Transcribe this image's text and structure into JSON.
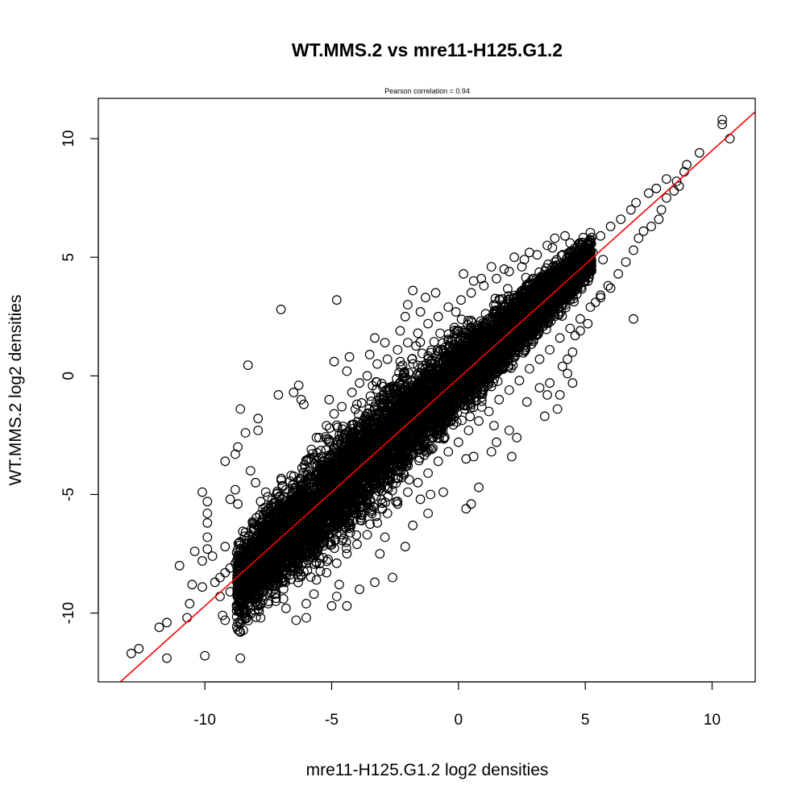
{
  "chart_data": {
    "type": "scatter",
    "title": "WT.MMS.2 vs mre11-H125.G1.2",
    "subtitle": "Pearson correlation =  0.94",
    "xlabel": "mre11-H125.G1.2 log2 densities",
    "ylabel": "WT.MMS.2 log2 densities",
    "xlim": [
      -14.2,
      11.7
    ],
    "ylim": [
      -12.9,
      11.7
    ],
    "xticks": [
      -10,
      -5,
      0,
      5,
      10
    ],
    "yticks": [
      -10,
      -5,
      0,
      5,
      10
    ],
    "xtick_labels": [
      "-10",
      "-5",
      "0",
      "5",
      "10"
    ],
    "ytick_labels": [
      "-10",
      "-5",
      "0",
      "5",
      "10"
    ],
    "grid": false,
    "marker": "open-circle",
    "colors": {
      "points": "#000000",
      "fit_line": "#ff0000"
    },
    "fit_line": {
      "slope": 0.96,
      "intercept": -0.1
    },
    "dense_band": [
      [
        -8.5,
        -8.6,
        1.0
      ],
      [
        -8.0,
        -8.0,
        1.0
      ],
      [
        -7.5,
        -7.5,
        1.1
      ],
      [
        -7.0,
        -7.0,
        1.2
      ],
      [
        -6.5,
        -6.5,
        1.2
      ],
      [
        -6.0,
        -6.0,
        1.2
      ],
      [
        -5.5,
        -5.5,
        1.25
      ],
      [
        -5.0,
        -5.0,
        1.3
      ],
      [
        -4.5,
        -4.5,
        1.3
      ],
      [
        -4.0,
        -4.0,
        1.3
      ],
      [
        -3.5,
        -3.4,
        1.3
      ],
      [
        -3.0,
        -2.9,
        1.3
      ],
      [
        -2.5,
        -2.4,
        1.25
      ],
      [
        -2.0,
        -1.9,
        1.2
      ],
      [
        -1.5,
        -1.4,
        1.15
      ],
      [
        -1.0,
        -0.9,
        1.1
      ],
      [
        -0.5,
        -0.4,
        1.05
      ],
      [
        0.0,
        0.0,
        1.0
      ],
      [
        0.5,
        0.5,
        0.95
      ],
      [
        1.0,
        0.9,
        0.9
      ],
      [
        1.5,
        1.4,
        0.85
      ],
      [
        2.0,
        1.9,
        0.8
      ],
      [
        2.5,
        2.4,
        0.75
      ],
      [
        3.0,
        2.9,
        0.7
      ],
      [
        3.5,
        3.3,
        0.65
      ],
      [
        4.0,
        3.8,
        0.6
      ],
      [
        4.5,
        4.3,
        0.55
      ],
      [
        5.0,
        4.8,
        0.5
      ]
    ],
    "points": [
      [
        -12.9,
        -11.7
      ],
      [
        -12.6,
        -11.5
      ],
      [
        -11.5,
        -11.9
      ],
      [
        -10.0,
        -11.8
      ],
      [
        -8.6,
        -11.9
      ],
      [
        -11.8,
        -10.6
      ],
      [
        -11.5,
        -10.4
      ],
      [
        -10.7,
        -10.2
      ],
      [
        -9.3,
        -10.1
      ],
      [
        -9.2,
        -10.3
      ],
      [
        -8.7,
        -10.4
      ],
      [
        -8.6,
        -10.8
      ],
      [
        -6.4,
        -10.3
      ],
      [
        -6.0,
        -10.2
      ],
      [
        -7.8,
        -10.2
      ],
      [
        -11.0,
        -8.0
      ],
      [
        -10.5,
        -8.8
      ],
      [
        -10.1,
        -8.9
      ],
      [
        -10.6,
        -9.6
      ],
      [
        -10.1,
        -4.9
      ],
      [
        -9.9,
        -5.3
      ],
      [
        -9.9,
        -5.8
      ],
      [
        -9.9,
        -6.2
      ],
      [
        -9.9,
        -6.8
      ],
      [
        -9.9,
        -7.3
      ],
      [
        -10.4,
        -7.4
      ],
      [
        -10.1,
        -7.8
      ],
      [
        -9.7,
        -7.6
      ],
      [
        -9.2,
        -7.2
      ],
      [
        -8.8,
        -4.8
      ],
      [
        -9.0,
        -5.2
      ],
      [
        -8.7,
        -5.4
      ],
      [
        -9.2,
        -3.6
      ],
      [
        -8.8,
        -3.3
      ],
      [
        -8.4,
        -2.4
      ],
      [
        -8.6,
        -1.4
      ],
      [
        -7.9,
        -2.3
      ],
      [
        -8.7,
        -3.0
      ],
      [
        -8.2,
        -4.0
      ],
      [
        -8.0,
        -4.5
      ],
      [
        -7.8,
        -5.3
      ],
      [
        -7.6,
        -4.9
      ],
      [
        -8.3,
        0.45
      ],
      [
        -7.9,
        -1.8
      ],
      [
        -7.1,
        -0.8
      ],
      [
        -7.0,
        2.8
      ],
      [
        -6.5,
        -0.7
      ],
      [
        -6.3,
        -0.4
      ],
      [
        -6.2,
        -1.0
      ],
      [
        -6.1,
        -1.2
      ],
      [
        -5.6,
        -2.6
      ],
      [
        -5.1,
        -2.8
      ],
      [
        -4.8,
        3.2
      ],
      [
        -4.9,
        0.6
      ],
      [
        -5.1,
        -1.0
      ],
      [
        -4.4,
        0.2
      ],
      [
        -4.3,
        0.8
      ],
      [
        -3.5,
        0.9
      ],
      [
        -3.3,
        1.6
      ],
      [
        -2.9,
        1.4
      ],
      [
        -2.6,
        -1.0
      ],
      [
        -2.1,
        2.5
      ],
      [
        -2.3,
        1.9
      ],
      [
        -2.0,
        3.0
      ],
      [
        -1.8,
        3.6
      ],
      [
        -1.3,
        3.3
      ],
      [
        -1.5,
        2.7
      ],
      [
        -0.9,
        3.5
      ],
      [
        -0.1,
        2.7
      ],
      [
        0.2,
        4.3
      ],
      [
        1.3,
        4.6
      ],
      [
        0.6,
        4.0
      ],
      [
        0.9,
        4.1
      ],
      [
        -6.8,
        -7.5
      ],
      [
        -6.5,
        -8.2
      ],
      [
        -6.0,
        -9.6
      ],
      [
        -6.9,
        -9.4
      ],
      [
        -5.7,
        -9.2
      ],
      [
        -5.0,
        -9.7
      ],
      [
        -4.8,
        -9.3
      ],
      [
        -4.4,
        -9.7
      ],
      [
        -4.7,
        -8.8
      ],
      [
        -3.9,
        -9.0
      ],
      [
        -3.3,
        -8.7
      ],
      [
        -2.6,
        -8.5
      ],
      [
        -3.1,
        -7.5
      ],
      [
        -2.9,
        -6.8
      ],
      [
        -2.1,
        -7.2
      ],
      [
        -1.8,
        -6.3
      ],
      [
        -1.2,
        -5.8
      ],
      [
        -1.5,
        -5.2
      ],
      [
        -1.1,
        -5.0
      ],
      [
        -0.6,
        -4.9
      ],
      [
        0.3,
        -5.6
      ],
      [
        0.5,
        -5.4
      ],
      [
        0.8,
        -4.7
      ],
      [
        0.3,
        -3.5
      ],
      [
        0.6,
        -3.4
      ],
      [
        1.3,
        -3.2
      ],
      [
        1.5,
        -2.8
      ],
      [
        1.4,
        -2.1
      ],
      [
        2.0,
        -2.3
      ],
      [
        2.3,
        -2.6
      ],
      [
        2.1,
        -3.4
      ],
      [
        2.7,
        -1.1
      ],
      [
        3.2,
        -0.5
      ],
      [
        3.4,
        -1.7
      ],
      [
        3.5,
        -0.8
      ],
      [
        3.6,
        -0.3
      ],
      [
        3.9,
        -1.4
      ],
      [
        4.0,
        -0.8
      ],
      [
        4.3,
        0.1
      ],
      [
        4.5,
        -0.3
      ],
      [
        4.1,
        0.4
      ],
      [
        4.3,
        0.7
      ],
      [
        4.5,
        1.0
      ],
      [
        4.6,
        1.7
      ],
      [
        4.8,
        1.9
      ],
      [
        5.1,
        2.2
      ],
      [
        5.4,
        3.1
      ],
      [
        5.6,
        3.4
      ],
      [
        5.9,
        3.8
      ],
      [
        6.3,
        4.3
      ],
      [
        6.6,
        4.8
      ],
      [
        6.9,
        5.3
      ],
      [
        7.1,
        5.8
      ],
      [
        7.3,
        6.1
      ],
      [
        7.6,
        6.3
      ],
      [
        7.9,
        6.6
      ],
      [
        8.0,
        7.0
      ],
      [
        8.2,
        7.5
      ],
      [
        8.5,
        7.8
      ],
      [
        8.7,
        8.0
      ],
      [
        8.2,
        8.3
      ],
      [
        7.8,
        7.9
      ],
      [
        7.5,
        7.7
      ],
      [
        7.0,
        7.3
      ],
      [
        6.8,
        7.0
      ],
      [
        6.4,
        6.6
      ],
      [
        6.0,
        6.3
      ],
      [
        5.6,
        5.9
      ],
      [
        5.2,
        5.6
      ],
      [
        4.8,
        5.3
      ],
      [
        4.4,
        5.6
      ],
      [
        3.8,
        5.8
      ],
      [
        3.5,
        5.5
      ],
      [
        2.8,
        5.2
      ],
      [
        2.2,
        5.0
      ],
      [
        2.5,
        4.6
      ],
      [
        1.8,
        4.5
      ],
      [
        6.9,
        2.4
      ],
      [
        5.3,
        5.2
      ],
      [
        5.7,
        4.9
      ],
      [
        9.0,
        8.9
      ],
      [
        9.5,
        9.4
      ],
      [
        10.4,
        10.8
      ],
      [
        10.4,
        10.6
      ],
      [
        10.7,
        10.0
      ],
      [
        8.9,
        8.6
      ],
      [
        8.6,
        8.2
      ],
      [
        -9.6,
        -8.7
      ],
      [
        -9.4,
        -8.5
      ],
      [
        -9.2,
        -8.3
      ],
      [
        -9.0,
        -8.1
      ],
      [
        -8.8,
        -7.9
      ],
      [
        -8.6,
        -7.7
      ],
      [
        -8.4,
        -7.5
      ],
      [
        -8.2,
        -7.3
      ],
      [
        -8.0,
        -7.1
      ],
      [
        -7.8,
        -6.9
      ],
      [
        -9.4,
        -9.3
      ],
      [
        -9.0,
        -9.1
      ],
      [
        -8.6,
        -8.9
      ],
      [
        -8.3,
        -9.2
      ],
      [
        -7.9,
        -9.4
      ],
      [
        -7.5,
        -9.6
      ],
      [
        -7.2,
        -9.5
      ],
      [
        -6.8,
        -9.8
      ],
      [
        -7.3,
        -6.0
      ],
      [
        -7.6,
        -5.7
      ],
      [
        -7.0,
        -5.6
      ],
      [
        -6.8,
        -4.8
      ],
      [
        -6.6,
        -4.2
      ],
      [
        -6.2,
        -4.4
      ],
      [
        -6.0,
        -3.6
      ],
      [
        -5.8,
        -3.1
      ],
      [
        -5.5,
        -2.6
      ],
      [
        -5.2,
        -2.1
      ],
      [
        -4.9,
        -1.6
      ],
      [
        -4.6,
        -1.3
      ],
      [
        -4.2,
        -0.7
      ],
      [
        -3.9,
        -0.3
      ],
      [
        -3.6,
        0.0
      ],
      [
        -3.2,
        0.5
      ],
      [
        -2.8,
        0.7
      ],
      [
        -2.4,
        1.1
      ],
      [
        -2.0,
        1.4
      ],
      [
        -1.6,
        1.8
      ],
      [
        -1.2,
        2.2
      ],
      [
        -0.8,
        2.5
      ],
      [
        -0.4,
        2.9
      ],
      [
        0.1,
        3.2
      ],
      [
        0.5,
        3.5
      ],
      [
        1.0,
        3.8
      ],
      [
        1.5,
        4.1
      ],
      [
        2.0,
        4.4
      ],
      [
        2.6,
        4.9
      ],
      [
        3.1,
        5.1
      ],
      [
        3.7,
        5.4
      ],
      [
        4.2,
        5.9
      ],
      [
        -5.6,
        -8.6
      ],
      [
        -5.2,
        -8.3
      ],
      [
        -4.8,
        -7.9
      ],
      [
        -4.4,
        -7.5
      ],
      [
        -4.0,
        -7.1
      ],
      [
        -3.6,
        -6.7
      ],
      [
        -3.2,
        -6.2
      ],
      [
        -2.8,
        -5.8
      ],
      [
        -2.4,
        -5.4
      ],
      [
        -2.0,
        -4.9
      ],
      [
        -1.6,
        -4.5
      ],
      [
        -1.2,
        -4.1
      ],
      [
        -0.8,
        -3.6
      ],
      [
        -0.4,
        -3.2
      ],
      [
        0.0,
        -2.8
      ],
      [
        0.4,
        -2.3
      ],
      [
        0.8,
        -1.9
      ],
      [
        1.2,
        -1.5
      ],
      [
        1.6,
        -1.0
      ],
      [
        2.0,
        -0.6
      ],
      [
        2.4,
        -0.2
      ],
      [
        2.8,
        0.3
      ],
      [
        3.2,
        0.7
      ],
      [
        3.6,
        1.1
      ],
      [
        4.0,
        1.6
      ],
      [
        4.4,
        2.0
      ],
      [
        4.8,
        2.4
      ],
      [
        5.2,
        2.9
      ],
      [
        5.6,
        3.3
      ],
      [
        6.0,
        3.7
      ]
    ]
  }
}
